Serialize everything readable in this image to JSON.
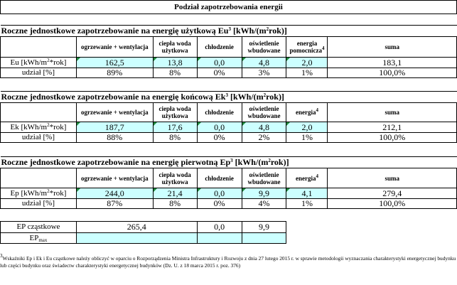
{
  "title": "Podział zapotrzebowania energii",
  "sections": [
    {
      "heading": "Roczne jednostkowe zapotrzebowanie na energię użytkową Eu",
      "heading_sup": "3",
      "heading_unit": "[kWh/(m",
      "heading_unit_sup": "2",
      "heading_unit_end": "rok)]",
      "headers": [
        "ogrzewanie + wentylacja",
        "ciepła woda użytkowa",
        "chłodzenie",
        "oświetlenie wbudowane",
        "energia pomocnicza",
        "suma"
      ],
      "energy_sup": "4",
      "row1_label": "Eu [kWh/m",
      "row1_label_sup": "2",
      "row1_label_end": "*rok]",
      "row1": [
        "162,5",
        "13,8",
        "0,0",
        "4,8",
        "2,0",
        "183,1"
      ],
      "row2_label": "udział [%]",
      "row2": [
        "89%",
        "8%",
        "0%",
        "3%",
        "1%",
        "100,0%"
      ]
    },
    {
      "heading": "Roczne jednostkowe zapotrzebowanie na energię końcową Ek",
      "heading_sup": "3",
      "heading_unit": "[kWh/(m",
      "heading_unit_sup": "2",
      "heading_unit_end": "rok)]",
      "headers": [
        "ogrzewanie + wentylacja",
        "ciepła woda użytkowa",
        "chłodzenie",
        "oświetlenie wbudowane",
        "energia",
        "suma"
      ],
      "energy_sup": "4",
      "row1_label": "Ek [kWh/m",
      "row1_label_sup": "2",
      "row1_label_end": "*rok]",
      "row1": [
        "187,7",
        "17,6",
        "0,0",
        "4,8",
        "2,0",
        "212,1"
      ],
      "row2_label": "udział [%]",
      "row2": [
        "88%",
        "8%",
        "0%",
        "2%",
        "1%",
        "100,0%"
      ]
    },
    {
      "heading": "Roczne jednostkowe zapotrzebowanie na energię pierwotną Ep",
      "heading_sup": "3",
      "heading_unit": "[kWh/(m",
      "heading_unit_sup": "2",
      "heading_unit_end": "rok)]",
      "headers": [
        "ogrzewanie + wentylacja",
        "ciepła woda użytkowa",
        "chłodzenie",
        "oświetlenie wbudowane",
        "energia",
        "suma"
      ],
      "energy_sup": "4",
      "row1_label": "Ep [kWh/m",
      "row1_label_sup": "2",
      "row1_label_end": "*rok]",
      "row1": [
        "244,0",
        "21,4",
        "0,0",
        "9,9",
        "4,1",
        "279,4"
      ],
      "row2_label": "udział [%]",
      "row2": [
        "87%",
        "8%",
        "0%",
        "4%",
        "1%",
        "100,0%"
      ]
    }
  ],
  "ep_partial": {
    "label": "EP cząstkowe",
    "heating_dhw": "265,4",
    "cooling": "0,0",
    "lighting": "9,9"
  },
  "ep_max": {
    "label": "EP",
    "label_sub": "max"
  },
  "footnote": {
    "sup": "3",
    "text": "Wskaźniki Ep i Ek i Eu cząstkowe należy obliczyć w oparciu o Rozporządzenia Ministra Infrastruktury i Rozwoju z dnia 27 lutego 2015 r. w sprawie metodologii wyznaczania charakterystyki energetycznej budynku lub części budynku oraz świadectw charakterystyki energetycznej budynków (Dz. U. z 18 marca 2015 r. poz. 376)"
  },
  "colors": {
    "input_fill": "#ccffff",
    "marker": "#1e8a3c",
    "grid": "#000000"
  }
}
